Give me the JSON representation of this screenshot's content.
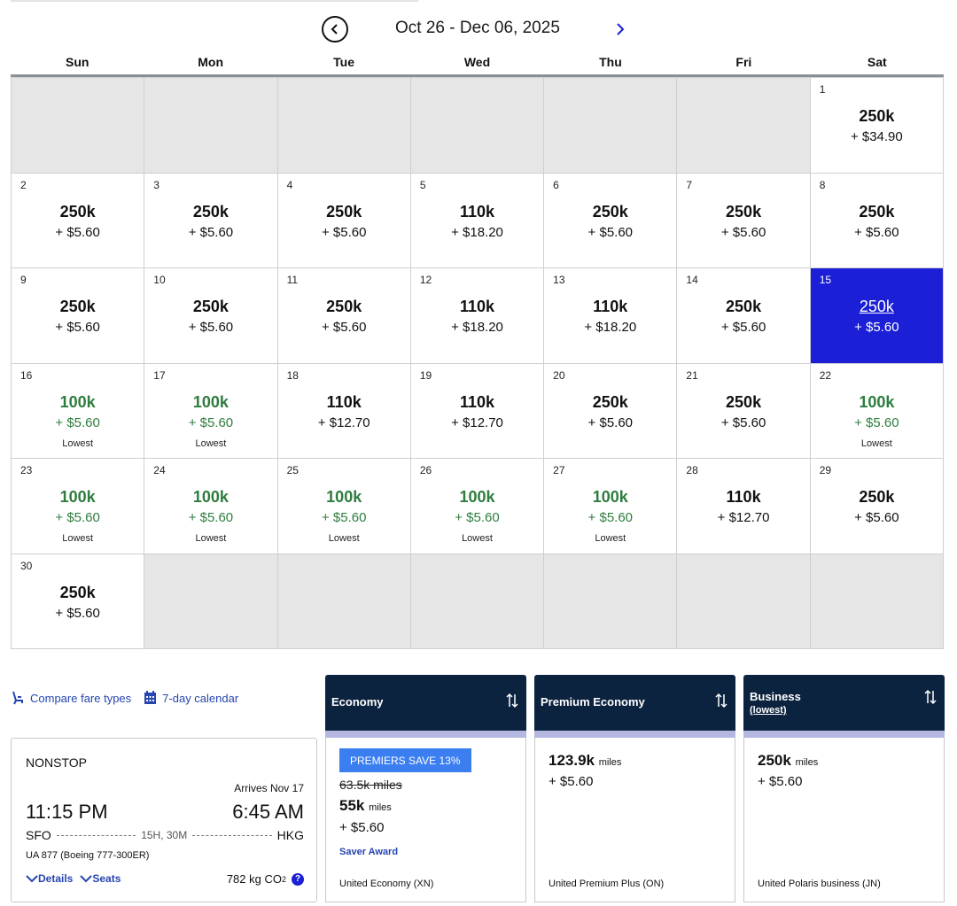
{
  "header": {
    "range_title": "Oct 26 - Dec 06, 2025",
    "prev_icon": "chevron-left-circle-icon",
    "next_icon": "chevron-right-icon"
  },
  "weekdays": [
    "Sun",
    "Mon",
    "Tue",
    "Wed",
    "Thu",
    "Fri",
    "Sat"
  ],
  "calendar": {
    "lowest_label": "Lowest",
    "selected_day": "15",
    "colors": {
      "selected": "#1b1fd6",
      "lowest": "#2e7d3e",
      "empty": "#e6e6e6"
    },
    "cells": [
      {
        "day": "",
        "miles": "",
        "fee": ""
      },
      {
        "day": "",
        "miles": "",
        "fee": ""
      },
      {
        "day": "",
        "miles": "",
        "fee": ""
      },
      {
        "day": "",
        "miles": "",
        "fee": ""
      },
      {
        "day": "",
        "miles": "",
        "fee": ""
      },
      {
        "day": "",
        "miles": "",
        "fee": ""
      },
      {
        "day": "1",
        "miles": "250k",
        "fee": "+ $34.90"
      },
      {
        "day": "2",
        "miles": "250k",
        "fee": "+ $5.60"
      },
      {
        "day": "3",
        "miles": "250k",
        "fee": "+ $5.60"
      },
      {
        "day": "4",
        "miles": "250k",
        "fee": "+ $5.60"
      },
      {
        "day": "5",
        "miles": "110k",
        "fee": "+ $18.20"
      },
      {
        "day": "6",
        "miles": "250k",
        "fee": "+ $5.60"
      },
      {
        "day": "7",
        "miles": "250k",
        "fee": "+ $5.60"
      },
      {
        "day": "8",
        "miles": "250k",
        "fee": "+ $5.60"
      },
      {
        "day": "9",
        "miles": "250k",
        "fee": "+ $5.60"
      },
      {
        "day": "10",
        "miles": "250k",
        "fee": "+ $5.60"
      },
      {
        "day": "11",
        "miles": "250k",
        "fee": "+ $5.60"
      },
      {
        "day": "12",
        "miles": "110k",
        "fee": "+ $18.20"
      },
      {
        "day": "13",
        "miles": "110k",
        "fee": "+ $18.20"
      },
      {
        "day": "14",
        "miles": "250k",
        "fee": "+ $5.60"
      },
      {
        "day": "15",
        "miles": "250k",
        "fee": "+ $5.60",
        "selected": true
      },
      {
        "day": "16",
        "miles": "100k",
        "fee": "+ $5.60",
        "lowest": true
      },
      {
        "day": "17",
        "miles": "100k",
        "fee": "+ $5.60",
        "lowest": true
      },
      {
        "day": "18",
        "miles": "110k",
        "fee": "+ $12.70"
      },
      {
        "day": "19",
        "miles": "110k",
        "fee": "+ $12.70"
      },
      {
        "day": "20",
        "miles": "250k",
        "fee": "+ $5.60"
      },
      {
        "day": "21",
        "miles": "250k",
        "fee": "+ $5.60"
      },
      {
        "day": "22",
        "miles": "100k",
        "fee": "+ $5.60",
        "lowest": true
      },
      {
        "day": "23",
        "miles": "100k",
        "fee": "+ $5.60",
        "lowest": true
      },
      {
        "day": "24",
        "miles": "100k",
        "fee": "+ $5.60",
        "lowest": true
      },
      {
        "day": "25",
        "miles": "100k",
        "fee": "+ $5.60",
        "lowest": true
      },
      {
        "day": "26",
        "miles": "100k",
        "fee": "+ $5.60",
        "lowest": true
      },
      {
        "day": "27",
        "miles": "100k",
        "fee": "+ $5.60",
        "lowest": true
      },
      {
        "day": "28",
        "miles": "110k",
        "fee": "+ $12.70"
      },
      {
        "day": "29",
        "miles": "250k",
        "fee": "+ $5.60"
      },
      {
        "day": "30",
        "miles": "250k",
        "fee": "+ $5.60"
      },
      {
        "day": "",
        "miles": "",
        "fee": ""
      },
      {
        "day": "",
        "miles": "",
        "fee": ""
      },
      {
        "day": "",
        "miles": "",
        "fee": ""
      },
      {
        "day": "",
        "miles": "",
        "fee": ""
      },
      {
        "day": "",
        "miles": "",
        "fee": ""
      },
      {
        "day": "",
        "miles": "",
        "fee": ""
      }
    ]
  },
  "links": {
    "compare": "Compare fare types",
    "compare_icon": "seat-icon",
    "calendar7": "7-day calendar",
    "calendar7_icon": "calendar-icon"
  },
  "flight": {
    "stops": "NONSTOP",
    "arrives": "Arrives Nov 17",
    "depart_time": "11:15 PM",
    "arrive_time": "6:45 AM",
    "origin": "SFO",
    "destination": "HKG",
    "duration": "15H, 30M",
    "aircraft": "UA 877 (Boeing 777-300ER)",
    "details": "Details",
    "seats": "Seats",
    "co2": "782 kg CO",
    "co2_sub": "2",
    "help": "?"
  },
  "fares": {
    "economy": {
      "title": "Economy",
      "promo": "PREMIERS SAVE 13%",
      "original": "63.5k miles",
      "miles": "55k",
      "miles_unit": "miles",
      "fee": "+ $5.60",
      "award": "Saver Award",
      "fare_class": "United Economy (XN)"
    },
    "premium": {
      "title": "Premium Economy",
      "miles": "123.9k",
      "miles_unit": "miles",
      "fee": "+ $5.60",
      "fare_class": "United Premium Plus (ON)"
    },
    "business": {
      "title": "Business",
      "subtitle": "(lowest)",
      "miles": "250k",
      "miles_unit": "miles",
      "fee": "+ $5.60",
      "fare_class": "United Polaris business (JN)"
    },
    "colors": {
      "header": "#0c2340",
      "band": "#b4b7e0",
      "promo": "#3a7ef0",
      "link": "#2545b0"
    }
  }
}
